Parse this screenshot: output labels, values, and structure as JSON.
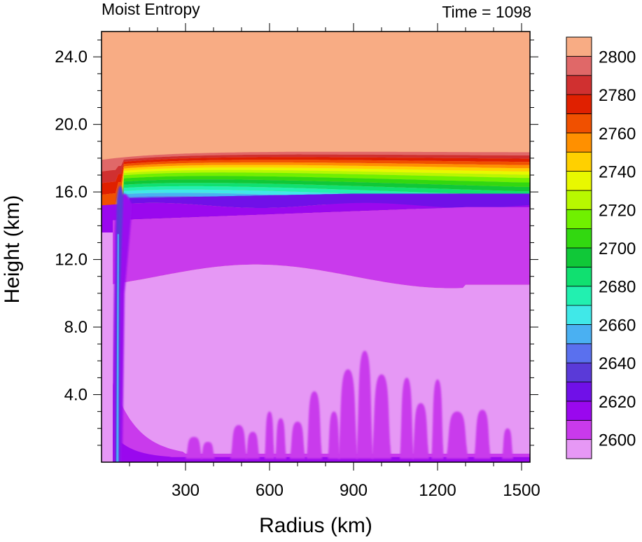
{
  "chart_data": {
    "type": "heatmap",
    "title_left": "Moist Entropy",
    "title_right": "Time = 1098",
    "xlabel": "Radius (km)",
    "ylabel": "Height (km)",
    "xlim": [
      0,
      1530
    ],
    "ylim": [
      0,
      25.5
    ],
    "xticks": [
      300,
      600,
      900,
      1200,
      1500
    ],
    "xtick_labels": [
      "300",
      "600",
      "900",
      "1200",
      "1500"
    ],
    "yticks": [
      4,
      8,
      12,
      16,
      20,
      24
    ],
    "ytick_labels": [
      "4.0",
      "8.0",
      "12.0",
      "16.0",
      "20.0",
      "24.0"
    ],
    "colorbar": {
      "levels": [
        2600,
        2610,
        2620,
        2630,
        2640,
        2650,
        2660,
        2670,
        2680,
        2690,
        2700,
        2710,
        2720,
        2730,
        2740,
        2750,
        2760,
        2770,
        2780,
        2790,
        2800
      ],
      "labels": [
        "2600",
        "2620",
        "2640",
        "2660",
        "2680",
        "2700",
        "2720",
        "2740",
        "2760",
        "2780",
        "2800"
      ],
      "colors": [
        "#e698f5",
        "#c93aec",
        "#9a08ee",
        "#7010e8",
        "#5a3ad8",
        "#5a70ee",
        "#4ab0f2",
        "#40e8e8",
        "#22f0b0",
        "#10e070",
        "#10c838",
        "#32d810",
        "#70f000",
        "#b8f800",
        "#e8f800",
        "#ffd000",
        "#ff9000",
        "#f05000",
        "#e02000",
        "#d03030",
        "#e06868",
        "#f8ac84"
      ]
    },
    "top_value_color": "#f8ac84",
    "tropopause_height_km": 17.8,
    "eyewall_radius_km": 60
  }
}
